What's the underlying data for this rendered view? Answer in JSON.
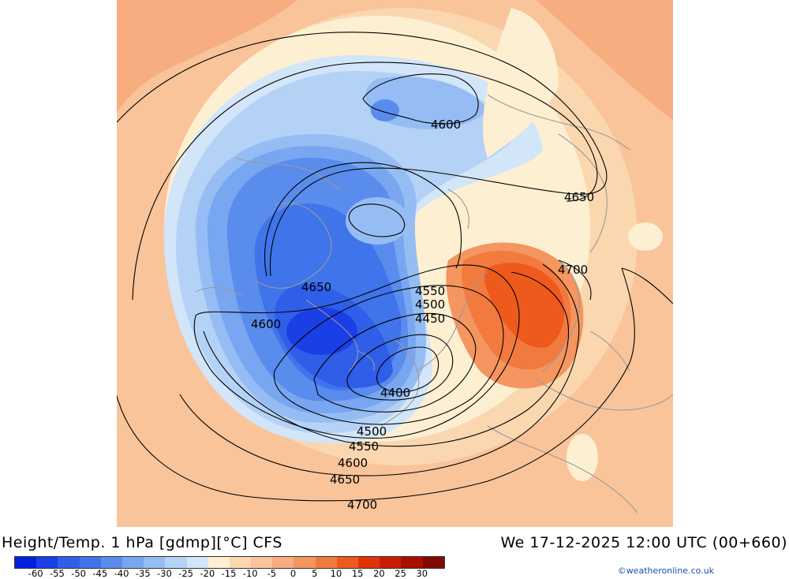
{
  "title": {
    "left": "Height/Temp. 1 hPa [gdmp][°C] CFS",
    "right": "We 17-12-2025 12:00 UTC (00+660)"
  },
  "credit": "©weatheronline.co.uk",
  "legend": {
    "colors": [
      "#0020e0",
      "#1a3fe6",
      "#2f5ee8",
      "#3f74ea",
      "#5a8ced",
      "#78a6f0",
      "#96bdf3",
      "#b4d2f6",
      "#d2e5f9",
      "#fdefd2",
      "#fbd7b0",
      "#f9c49a",
      "#f7ad80",
      "#f5955f",
      "#f27a3e",
      "#ee5a1c",
      "#e33208",
      "#cc1a04",
      "#a80d02",
      "#800a00"
    ],
    "ticks": [
      "-60",
      "-55",
      "-50",
      "-45",
      "-40",
      "-35",
      "-30",
      "-25",
      "-20",
      "-15",
      "-10",
      "-5",
      "0",
      "5",
      "10",
      "15",
      "20",
      "25",
      "30"
    ]
  },
  "contour_labels": [
    "4600",
    "4650",
    "4700",
    "4650",
    "4600",
    "4550",
    "4500",
    "4450",
    "4400",
    "4500",
    "4550",
    "4600",
    "4650",
    "4700"
  ]
}
